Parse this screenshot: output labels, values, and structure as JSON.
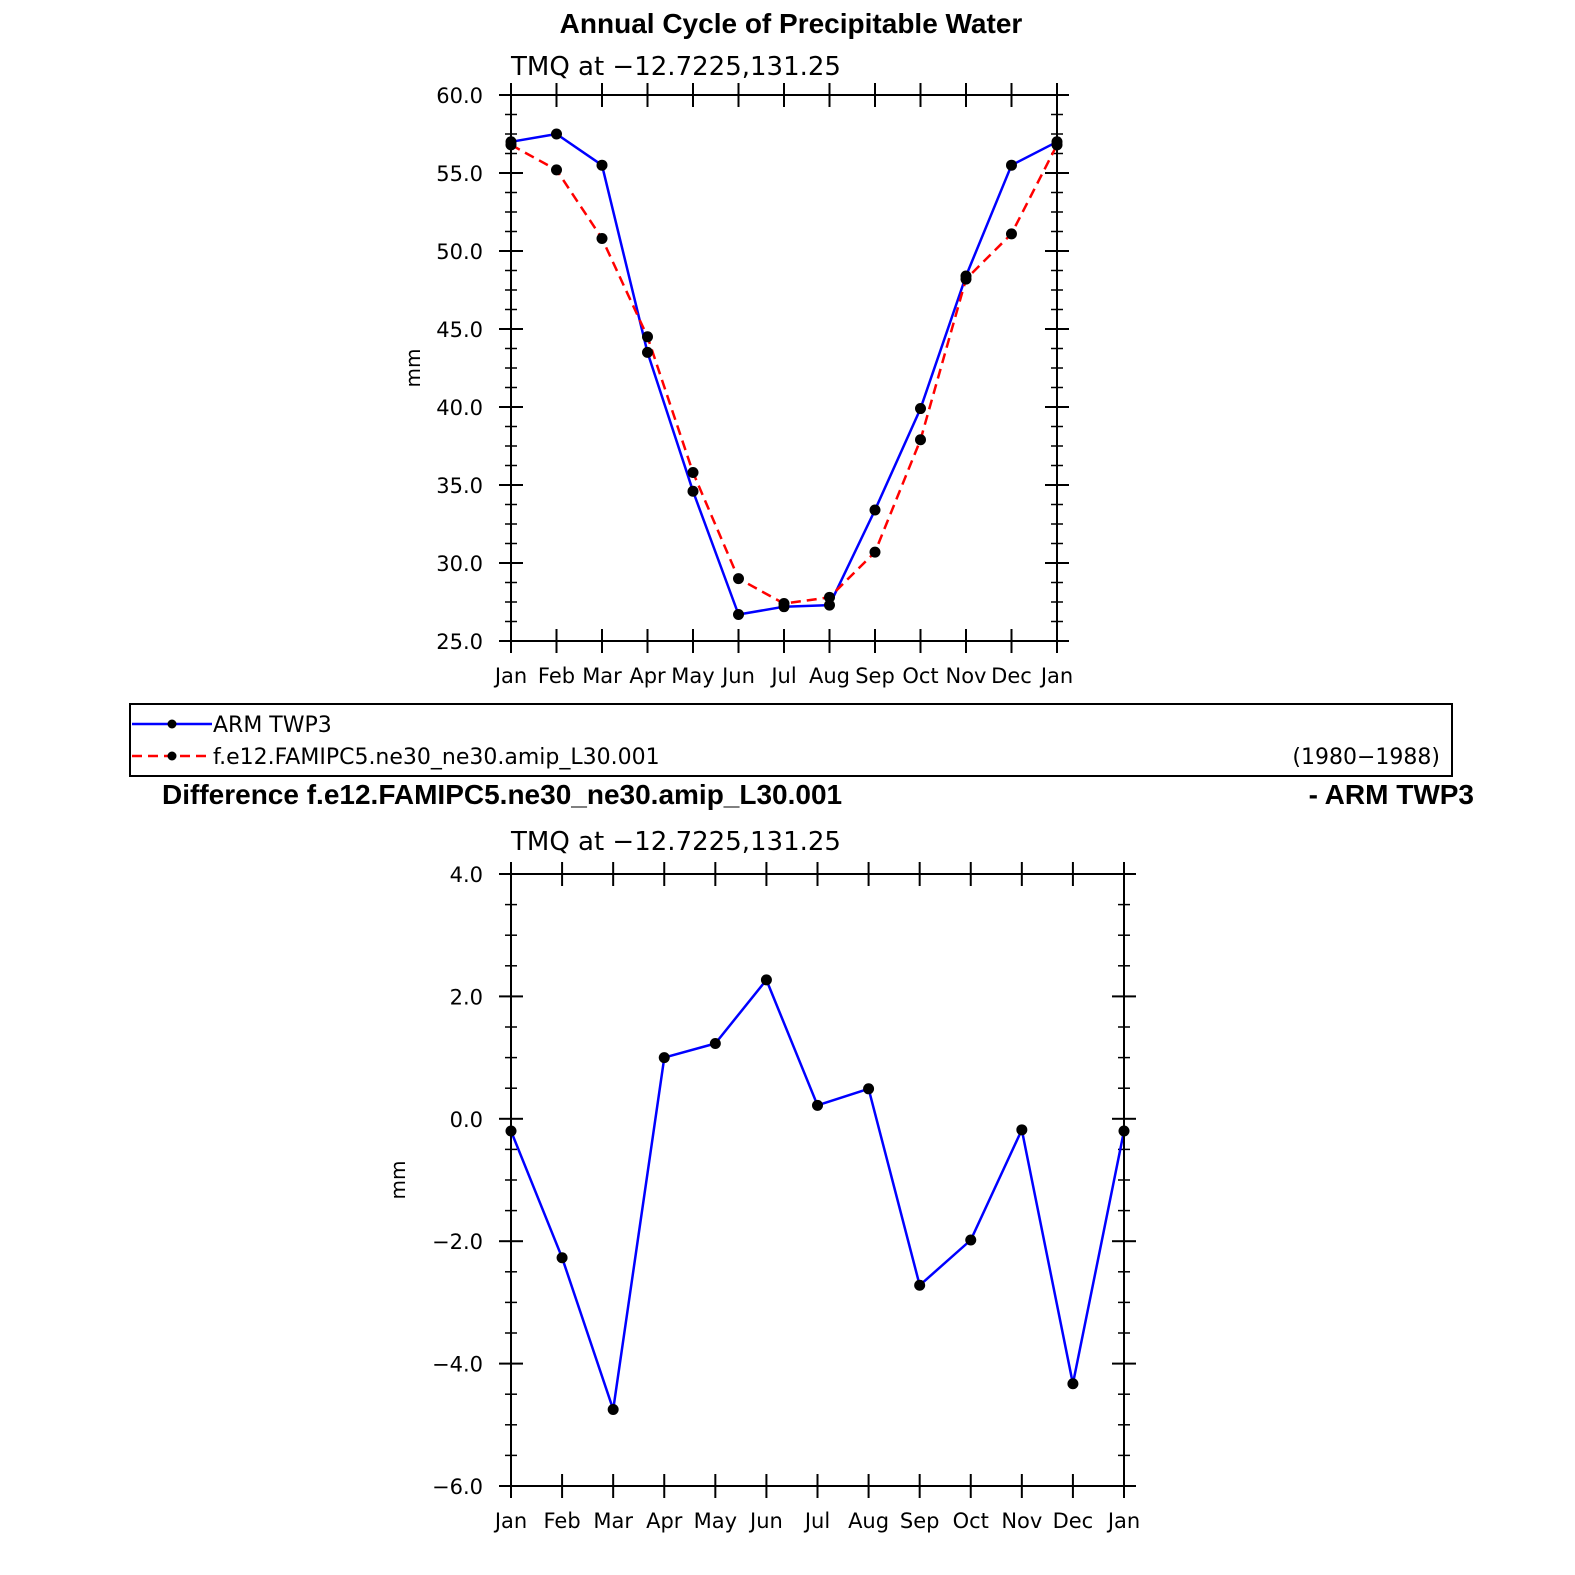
{
  "chart_data": [
    {
      "type": "line",
      "title": "Annual Cycle of Precipitable Water",
      "subtitle": "TMQ at −12.7225,131.25",
      "ylabel": "mm",
      "ylim": [
        25.0,
        60.0
      ],
      "yticks": [
        "25.0",
        "30.0",
        "35.0",
        "40.0",
        "45.0",
        "50.0",
        "55.0",
        "60.0"
      ],
      "categories": [
        "Jan",
        "Feb",
        "Mar",
        "Apr",
        "May",
        "Jun",
        "Jul",
        "Aug",
        "Sep",
        "Oct",
        "Nov",
        "Dec",
        "Jan"
      ],
      "series": [
        {
          "name": "ARM TWP3",
          "color": "#0000ff",
          "dash": "solid",
          "values": [
            57.0,
            57.5,
            55.5,
            43.5,
            34.6,
            26.7,
            27.2,
            27.3,
            33.4,
            39.9,
            48.4,
            55.5,
            57.0
          ]
        },
        {
          "name": "f.e12.FAMIPC5.ne30_ne30.amip_L30.001",
          "color": "#ff0000",
          "dash": "dashed",
          "values": [
            56.8,
            55.2,
            50.8,
            44.5,
            35.8,
            29.0,
            27.4,
            27.8,
            30.7,
            37.9,
            48.2,
            51.1,
            56.8
          ]
        }
      ],
      "legend": {
        "placement": "bottom",
        "period": "(1980−1988)"
      }
    },
    {
      "type": "line",
      "title": "Difference f.e12.FAMIPC5.ne30_ne30.amip_L30.001",
      "title_right": "- ARM TWP3",
      "subtitle": "TMQ at −12.7225,131.25",
      "ylabel": "mm",
      "ylim": [
        -6.0,
        4.0
      ],
      "yticks": [
        "−6.0",
        "−4.0",
        "−2.0",
        "0.0",
        "2.0",
        "4.0"
      ],
      "categories": [
        "Jan",
        "Feb",
        "Mar",
        "Apr",
        "May",
        "Jun",
        "Jul",
        "Aug",
        "Sep",
        "Oct",
        "Nov",
        "Dec",
        "Jan"
      ],
      "series": [
        {
          "color": "#0000ff",
          "dash": "solid",
          "values": [
            -0.2,
            -2.27,
            -4.75,
            1.0,
            1.23,
            2.27,
            0.22,
            0.49,
            -2.72,
            -1.98,
            -0.18,
            -4.33,
            -0.2
          ]
        }
      ]
    }
  ]
}
